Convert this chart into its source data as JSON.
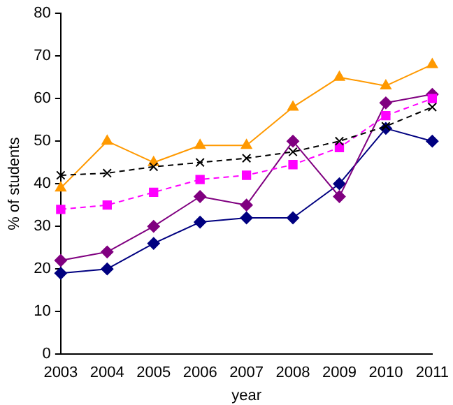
{
  "chart_data": {
    "type": "line",
    "xlabel": "year",
    "ylabel": "% of students",
    "categories": [
      "2003",
      "2004",
      "2005",
      "2006",
      "2007",
      "2008",
      "2009",
      "2010",
      "2011"
    ],
    "ylim": [
      0,
      80
    ],
    "yticks": [
      0,
      10,
      20,
      30,
      40,
      50,
      60,
      70,
      80
    ],
    "grid": false,
    "legend": false,
    "series": [
      {
        "color": "#000080",
        "marker": "diamond",
        "line_style": "solid",
        "values": [
          19,
          20,
          26,
          31,
          32,
          32,
          40,
          53,
          50
        ]
      },
      {
        "color": "#800080",
        "marker": "diamond",
        "line_style": "solid",
        "values": [
          22,
          24,
          30,
          37,
          35,
          50,
          37,
          59,
          61
        ]
      },
      {
        "color": "#ff00ff",
        "marker": "square",
        "line_style": "dashed",
        "values": [
          34,
          35,
          38,
          41,
          42,
          44.5,
          48.5,
          56,
          60
        ]
      },
      {
        "color": "#ff9900",
        "marker": "triangle",
        "line_style": "solid",
        "values": [
          39,
          50,
          45,
          49,
          49,
          58,
          65,
          63,
          68
        ]
      },
      {
        "color": "#000000",
        "marker": "cross",
        "line_style": "dashed",
        "values": [
          42,
          42.5,
          44,
          45,
          46,
          47.5,
          50,
          53.5,
          58
        ]
      }
    ]
  }
}
